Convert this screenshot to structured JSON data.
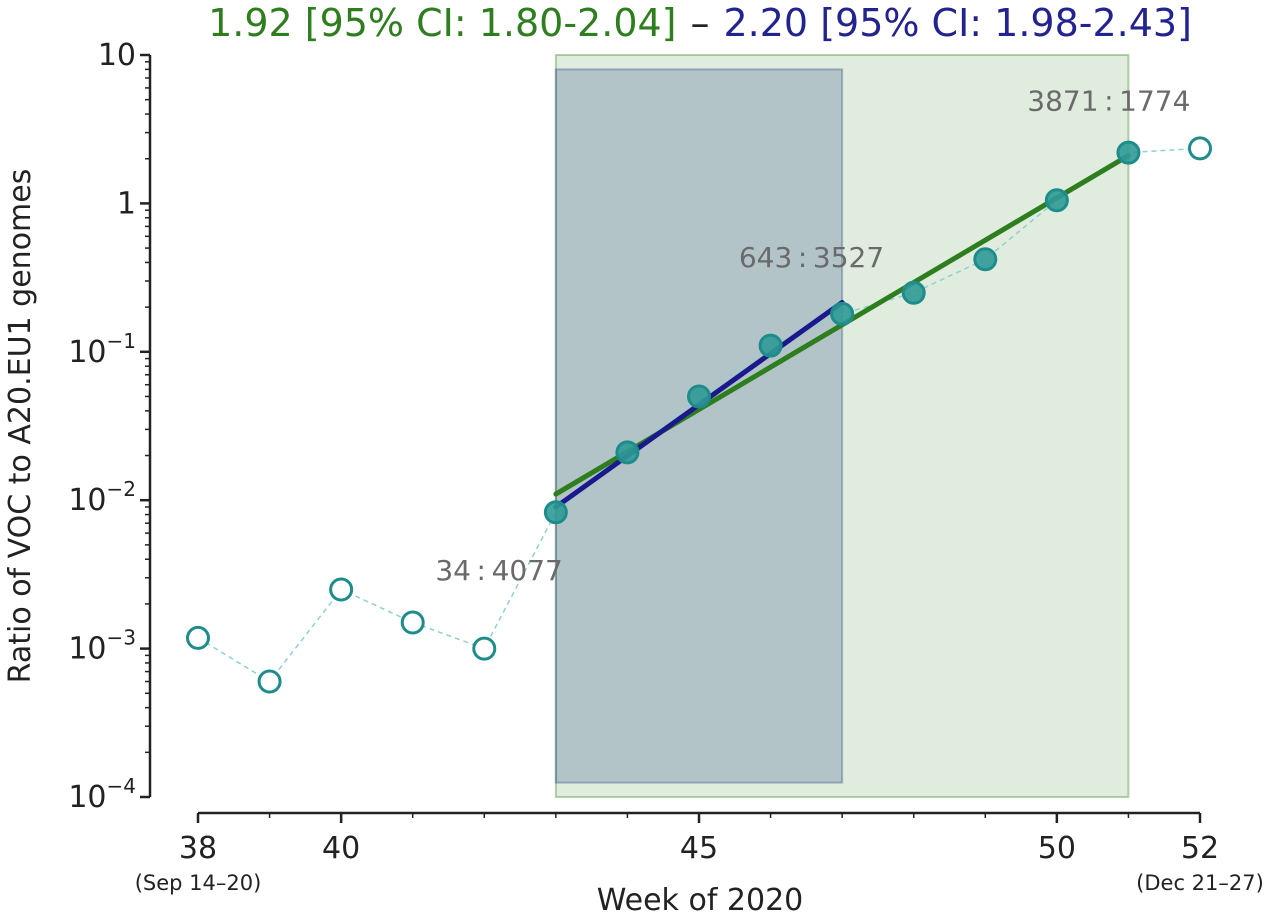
{
  "chart_data": {
    "type": "scatter",
    "title_parts": {
      "green": "1.92 [95% CI: 1.80-2.04]",
      "separator": "–",
      "blue": "2.20 [95% CI: 1.98-2.43]"
    },
    "xlabel": "Week of 2020",
    "ylabel": "Ratio of VOC to A20.EU1 genomes",
    "x_ticks": [
      38,
      40,
      45,
      50,
      52
    ],
    "x_tick_sublabels": [
      {
        "x": 38,
        "text": "(Sep 14–20)"
      },
      {
        "x": 52,
        "text": "(Dec 21–27)"
      }
    ],
    "y_scale": "log",
    "ylim": [
      0.0001,
      10
    ],
    "xlim": [
      38,
      52
    ],
    "y_ticks": [
      {
        "value": 10,
        "base": "10",
        "exp": ""
      },
      {
        "value": 1,
        "base": "1",
        "exp": ""
      },
      {
        "value": 0.1,
        "base": "10",
        "exp": "−1"
      },
      {
        "value": 0.01,
        "base": "10",
        "exp": "−2"
      },
      {
        "value": 0.001,
        "base": "10",
        "exp": "−3"
      },
      {
        "value": 0.0001,
        "base": "10",
        "exp": "−4"
      }
    ],
    "series": [
      {
        "style": "open",
        "x": [
          38,
          39,
          40,
          41,
          42,
          52
        ],
        "y": [
          0.00118,
          0.0006,
          0.0025,
          0.0015,
          0.001,
          2.35
        ]
      },
      {
        "style": "filled",
        "x": [
          43,
          44,
          45,
          46,
          47,
          48,
          49,
          50,
          51
        ],
        "y": [
          0.0083,
          0.021,
          0.05,
          0.11,
          0.18,
          0.25,
          0.42,
          1.05,
          2.2
        ]
      }
    ],
    "connector_x": [
      38,
      39,
      40,
      41,
      42,
      43,
      44,
      45,
      46,
      47,
      48,
      49,
      50,
      51,
      52
    ],
    "connector_y": [
      0.00118,
      0.0006,
      0.0025,
      0.0015,
      0.001,
      0.0083,
      0.021,
      0.05,
      0.11,
      0.18,
      0.25,
      0.42,
      1.05,
      2.2,
      2.35
    ],
    "fit_lines": [
      {
        "color": "#2e7d1e",
        "x": [
          43,
          51
        ],
        "y": [
          0.011,
          2.1
        ]
      },
      {
        "color": "#1a1a8c",
        "x": [
          43,
          47
        ],
        "y": [
          0.009,
          0.215
        ]
      }
    ],
    "shaded_regions": [
      {
        "color": "#2e7d1e",
        "x": [
          43,
          51
        ],
        "y": [
          0.0001,
          10
        ]
      },
      {
        "color": "#2a4a8a",
        "x": [
          43,
          47
        ],
        "y": [
          0.000125,
          8
        ]
      }
    ],
    "annotations": [
      {
        "text": "34 : 4077",
        "x": 43,
        "y": 0.0083
      },
      {
        "text": "643 : 3527",
        "x": 47,
        "y": 0.18
      },
      {
        "text": "3871 : 1774",
        "x": 51,
        "y": 2.2
      }
    ],
    "colors": {
      "marker": "#1f8c8c",
      "marker_fill": "#2f9a96",
      "connector": "#8fd0d0",
      "green": "#2e7d1e",
      "blue": "#23238f",
      "axis": "#222222",
      "annotation": "#6a6a6a"
    },
    "grid": false,
    "legend": "none"
  }
}
